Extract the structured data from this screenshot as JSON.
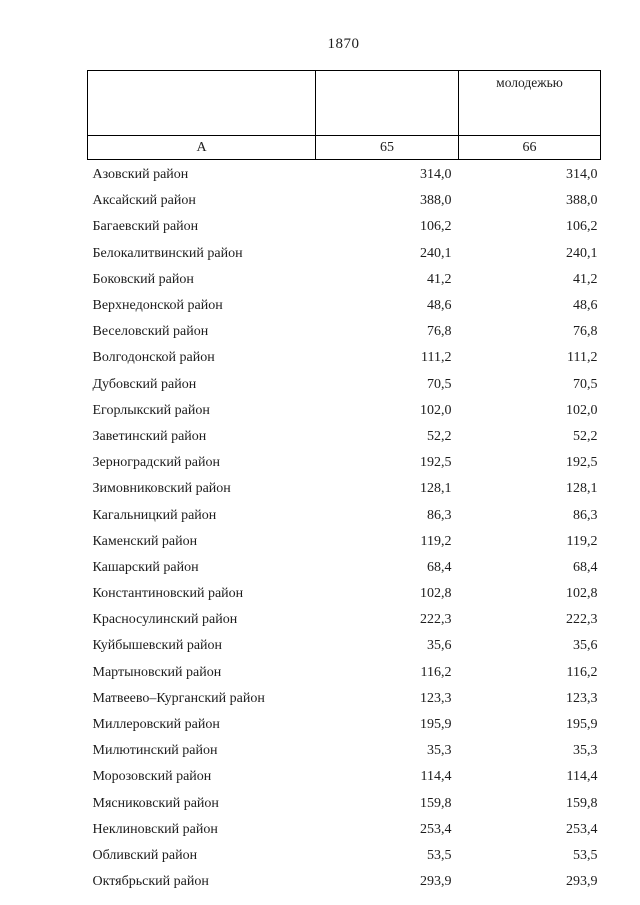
{
  "page": {
    "number": "1870"
  },
  "table": {
    "header": {
      "row1_col1": "",
      "row1_col2": "",
      "row1_col3": "молодежью",
      "row2_col1": "А",
      "row2_col2": "65",
      "row2_col3": "66"
    },
    "rows": [
      {
        "name": "Азовский район",
        "v65": "314,0",
        "v66": "314,0"
      },
      {
        "name": "Аксайский район",
        "v65": "388,0",
        "v66": "388,0"
      },
      {
        "name": "Багаевский район",
        "v65": "106,2",
        "v66": "106,2"
      },
      {
        "name": "Белокалитвинский район",
        "v65": "240,1",
        "v66": "240,1"
      },
      {
        "name": "Боковский район",
        "v65": "41,2",
        "v66": "41,2"
      },
      {
        "name": "Верхнедонской район",
        "v65": "48,6",
        "v66": "48,6"
      },
      {
        "name": "Веселовский район",
        "v65": "76,8",
        "v66": "76,8"
      },
      {
        "name": "Волгодонской район",
        "v65": "111,2",
        "v66": "111,2"
      },
      {
        "name": "Дубовский район",
        "v65": "70,5",
        "v66": "70,5"
      },
      {
        "name": "Егорлыкский район",
        "v65": "102,0",
        "v66": "102,0"
      },
      {
        "name": "Заветинский район",
        "v65": "52,2",
        "v66": "52,2"
      },
      {
        "name": "Зерноградский район",
        "v65": "192,5",
        "v66": "192,5"
      },
      {
        "name": "Зимовниковский район",
        "v65": "128,1",
        "v66": "128,1"
      },
      {
        "name": "Кагальницкий район",
        "v65": "86,3",
        "v66": "86,3"
      },
      {
        "name": "Каменский район",
        "v65": "119,2",
        "v66": "119,2"
      },
      {
        "name": "Кашарский район",
        "v65": "68,4",
        "v66": "68,4"
      },
      {
        "name": "Константиновский район",
        "v65": "102,8",
        "v66": "102,8"
      },
      {
        "name": "Красносулинский район",
        "v65": "222,3",
        "v66": "222,3"
      },
      {
        "name": "Куйбышевский район",
        "v65": "35,6",
        "v66": "35,6"
      },
      {
        "name": "Мартыновский район",
        "v65": "116,2",
        "v66": "116,2"
      },
      {
        "name": "Матвеево–Курганский район",
        "v65": "123,3",
        "v66": "123,3"
      },
      {
        "name": "Миллеровский район",
        "v65": "195,9",
        "v66": "195,9"
      },
      {
        "name": "Милютинский район",
        "v65": "35,3",
        "v66": "35,3"
      },
      {
        "name": "Морозовский район",
        "v65": "114,4",
        "v66": "114,4"
      },
      {
        "name": "Мясниковский район",
        "v65": "159,8",
        "v66": "159,8"
      },
      {
        "name": "Неклиновский район",
        "v65": "253,4",
        "v66": "253,4"
      },
      {
        "name": "Обливский район",
        "v65": "53,5",
        "v66": "53,5"
      },
      {
        "name": "Октябрьский район",
        "v65": "293,9",
        "v66": "293,9"
      }
    ]
  }
}
